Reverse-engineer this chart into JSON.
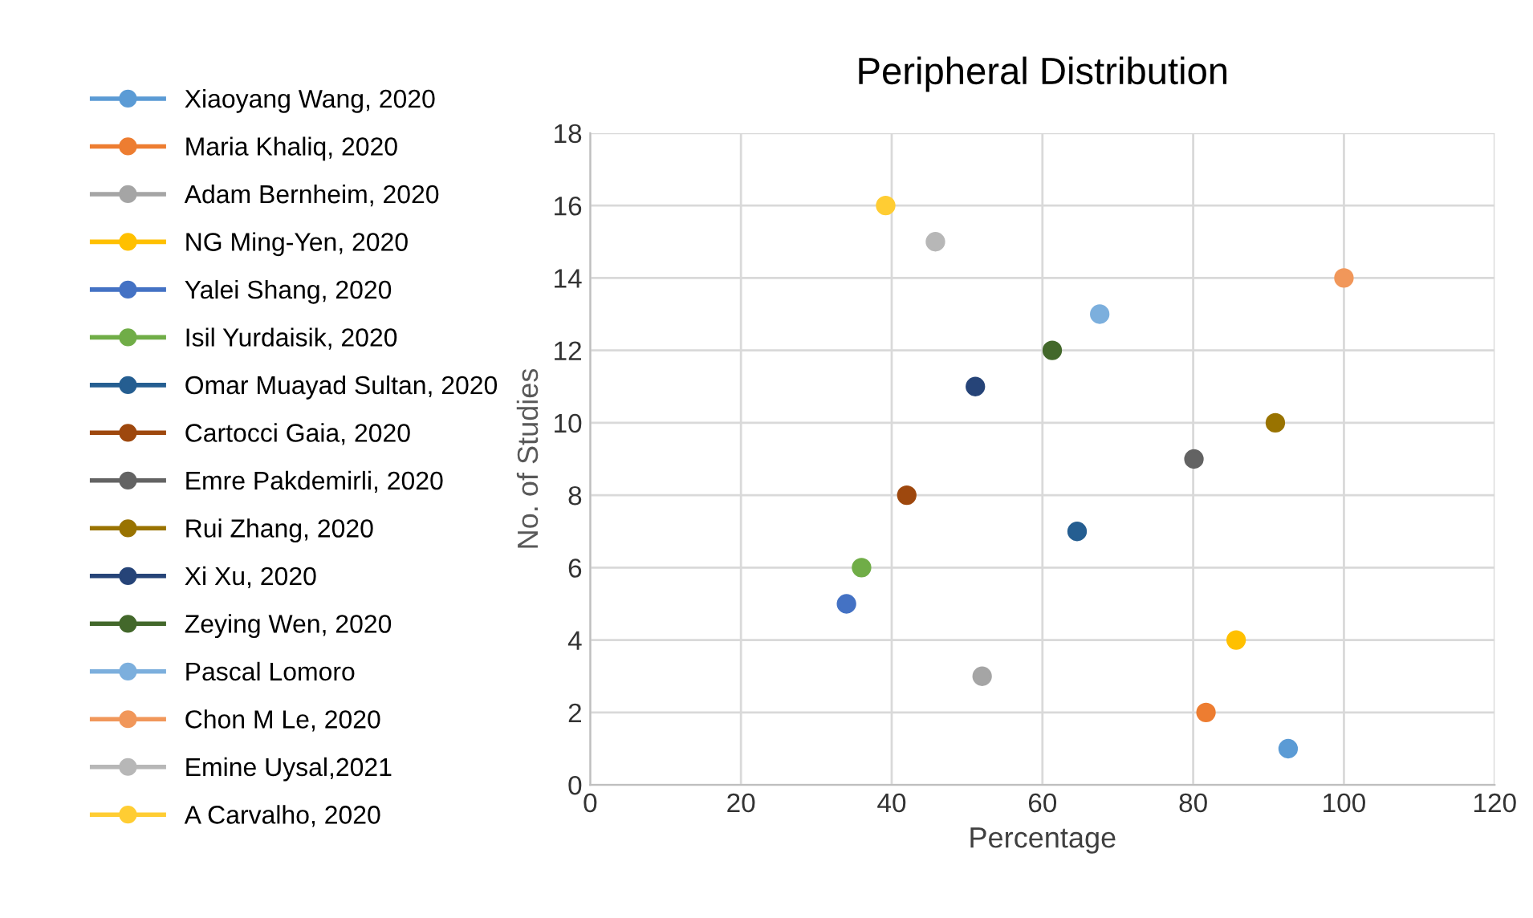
{
  "chart_data": {
    "type": "scatter",
    "title": "Peripheral Distribution",
    "xlabel": "Percentage",
    "ylabel": "No. of Studies",
    "xlim": [
      0,
      120
    ],
    "xticks": [
      0,
      20,
      40,
      60,
      80,
      100,
      120
    ],
    "ylim": [
      0,
      18
    ],
    "yticks": [
      0,
      2,
      4,
      6,
      8,
      10,
      12,
      14,
      16,
      18
    ],
    "grid": true,
    "legend": "left",
    "marker": "circle",
    "series": [
      {
        "name": "Xiaoyang Wang, 2020",
        "color": "#5b9bd5",
        "x": [
          92.6
        ],
        "values": [
          1
        ]
      },
      {
        "name": "Maria Khaliq, 2020",
        "color": "#ed7d31",
        "x": [
          81.7
        ],
        "values": [
          2
        ]
      },
      {
        "name": "Adam Bernheim, 2020",
        "color": "#a5a5a5",
        "x": [
          52.0
        ],
        "values": [
          3
        ]
      },
      {
        "name": "NG Ming-Yen, 2020",
        "color": "#ffc000",
        "x": [
          85.7
        ],
        "values": [
          4
        ]
      },
      {
        "name": "Yalei Shang, 2020",
        "color": "#4472c4",
        "x": [
          34.0
        ],
        "values": [
          5
        ]
      },
      {
        "name": "Isil Yurdaisik, 2020",
        "color": "#70ad47",
        "x": [
          36.0
        ],
        "values": [
          6
        ]
      },
      {
        "name": "Omar Muayad Sultan, 2020",
        "color": "#255e91",
        "x": [
          64.6
        ],
        "values": [
          7
        ]
      },
      {
        "name": "Cartocci Gaia, 2020",
        "color": "#9e480e",
        "x": [
          42.0
        ],
        "values": [
          8
        ]
      },
      {
        "name": "Emre Pakdemirli, 2020",
        "color": "#636363",
        "x": [
          80.1
        ],
        "values": [
          9
        ]
      },
      {
        "name": "Rui Zhang, 2020",
        "color": "#997300",
        "x": [
          90.9
        ],
        "values": [
          10
        ]
      },
      {
        "name": "Xi Xu, 2020",
        "color": "#264478",
        "x": [
          51.1
        ],
        "values": [
          11
        ]
      },
      {
        "name": "Zeying Wen, 2020",
        "color": "#43682b",
        "x": [
          61.3
        ],
        "values": [
          12
        ]
      },
      {
        "name": "Pascal Lomoro",
        "color": "#7cafdd",
        "x": [
          67.6
        ],
        "values": [
          13
        ]
      },
      {
        "name": "Chon M Le, 2020",
        "color": "#f1975a",
        "x": [
          100
        ],
        "values": [
          14
        ]
      },
      {
        "name": "Emine Uysal,2021",
        "color": "#b7b7b7",
        "x": [
          45.8
        ],
        "values": [
          15
        ]
      },
      {
        "name": "A Carvalho, 2020",
        "color": "#ffcd33",
        "x": [
          39.2
        ],
        "values": [
          16
        ]
      }
    ]
  }
}
